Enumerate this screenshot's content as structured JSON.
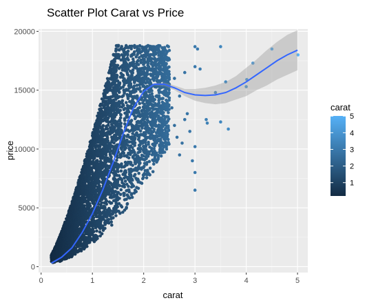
{
  "chart_data": {
    "type": "scatter",
    "title": "Scatter Plot Carat vs Price",
    "xlabel": "carat",
    "ylabel": "price",
    "xlim": [
      -0.05,
      5.2
    ],
    "ylim": [
      -500,
      20200
    ],
    "x_ticks": [
      0,
      1,
      2,
      3,
      4,
      5
    ],
    "y_ticks": [
      0,
      5000,
      10000,
      15000,
      20000
    ],
    "grid": true,
    "color_scale": {
      "variable": "carat",
      "low_color": "#132B43",
      "high_color": "#56B1F7",
      "range": [
        0.2,
        5.01
      ],
      "ticks": [
        1,
        2,
        3,
        4,
        5
      ]
    },
    "smooth_line": {
      "x": [
        0.2,
        0.4,
        0.6,
        0.8,
        1.0,
        1.2,
        1.4,
        1.6,
        1.8,
        2.0,
        2.2,
        2.4,
        2.6,
        2.8,
        3.0,
        3.2,
        3.4,
        3.6,
        3.8,
        4.0,
        4.2,
        4.4,
        4.6,
        4.8,
        5.0
      ],
      "y": [
        300,
        800,
        1600,
        2900,
        4500,
        6500,
        8800,
        11300,
        13500,
        14900,
        15500,
        15500,
        15200,
        14800,
        14600,
        14550,
        14600,
        14800,
        15200,
        15700,
        16300,
        16900,
        17500,
        18000,
        18400
      ],
      "band_upper": [
        400,
        850,
        1650,
        2950,
        4550,
        6550,
        8850,
        11350,
        13550,
        14950,
        15600,
        15650,
        15400,
        15100,
        15100,
        15200,
        15400,
        15700,
        16200,
        16900,
        17600,
        18400,
        19100,
        19700,
        20100
      ],
      "band_lower": [
        200,
        750,
        1550,
        2850,
        4450,
        6450,
        8750,
        11250,
        13450,
        14850,
        15400,
        15350,
        15000,
        14500,
        14100,
        13900,
        13800,
        13900,
        14200,
        14500,
        15000,
        15400,
        15900,
        16300,
        16700
      ]
    },
    "outliers": [
      {
        "x": 2.5,
        "y": 15500
      },
      {
        "x": 2.55,
        "y": 13500
      },
      {
        "x": 2.6,
        "y": 16000
      },
      {
        "x": 2.6,
        "y": 12000
      },
      {
        "x": 2.65,
        "y": 11000
      },
      {
        "x": 2.7,
        "y": 14500
      },
      {
        "x": 2.7,
        "y": 9500
      },
      {
        "x": 2.75,
        "y": 10500
      },
      {
        "x": 2.8,
        "y": 16500
      },
      {
        "x": 2.8,
        "y": 12500
      },
      {
        "x": 2.85,
        "y": 13000
      },
      {
        "x": 2.9,
        "y": 11500
      },
      {
        "x": 2.95,
        "y": 9000
      },
      {
        "x": 3.0,
        "y": 18700
      },
      {
        "x": 3.0,
        "y": 17000
      },
      {
        "x": 3.0,
        "y": 10200
      },
      {
        "x": 3.0,
        "y": 8000
      },
      {
        "x": 3.0,
        "y": 6500
      },
      {
        "x": 3.05,
        "y": 18500
      },
      {
        "x": 3.1,
        "y": 16800
      },
      {
        "x": 3.22,
        "y": 12500
      },
      {
        "x": 3.24,
        "y": 12200
      },
      {
        "x": 3.4,
        "y": 14800
      },
      {
        "x": 3.5,
        "y": 18700
      },
      {
        "x": 3.5,
        "y": 12300
      },
      {
        "x": 3.6,
        "y": 15700
      },
      {
        "x": 3.65,
        "y": 11700
      },
      {
        "x": 4.0,
        "y": 15300
      },
      {
        "x": 4.01,
        "y": 15900
      },
      {
        "x": 4.13,
        "y": 17300
      },
      {
        "x": 4.5,
        "y": 18500
      },
      {
        "x": 5.01,
        "y": 18000
      }
    ]
  }
}
